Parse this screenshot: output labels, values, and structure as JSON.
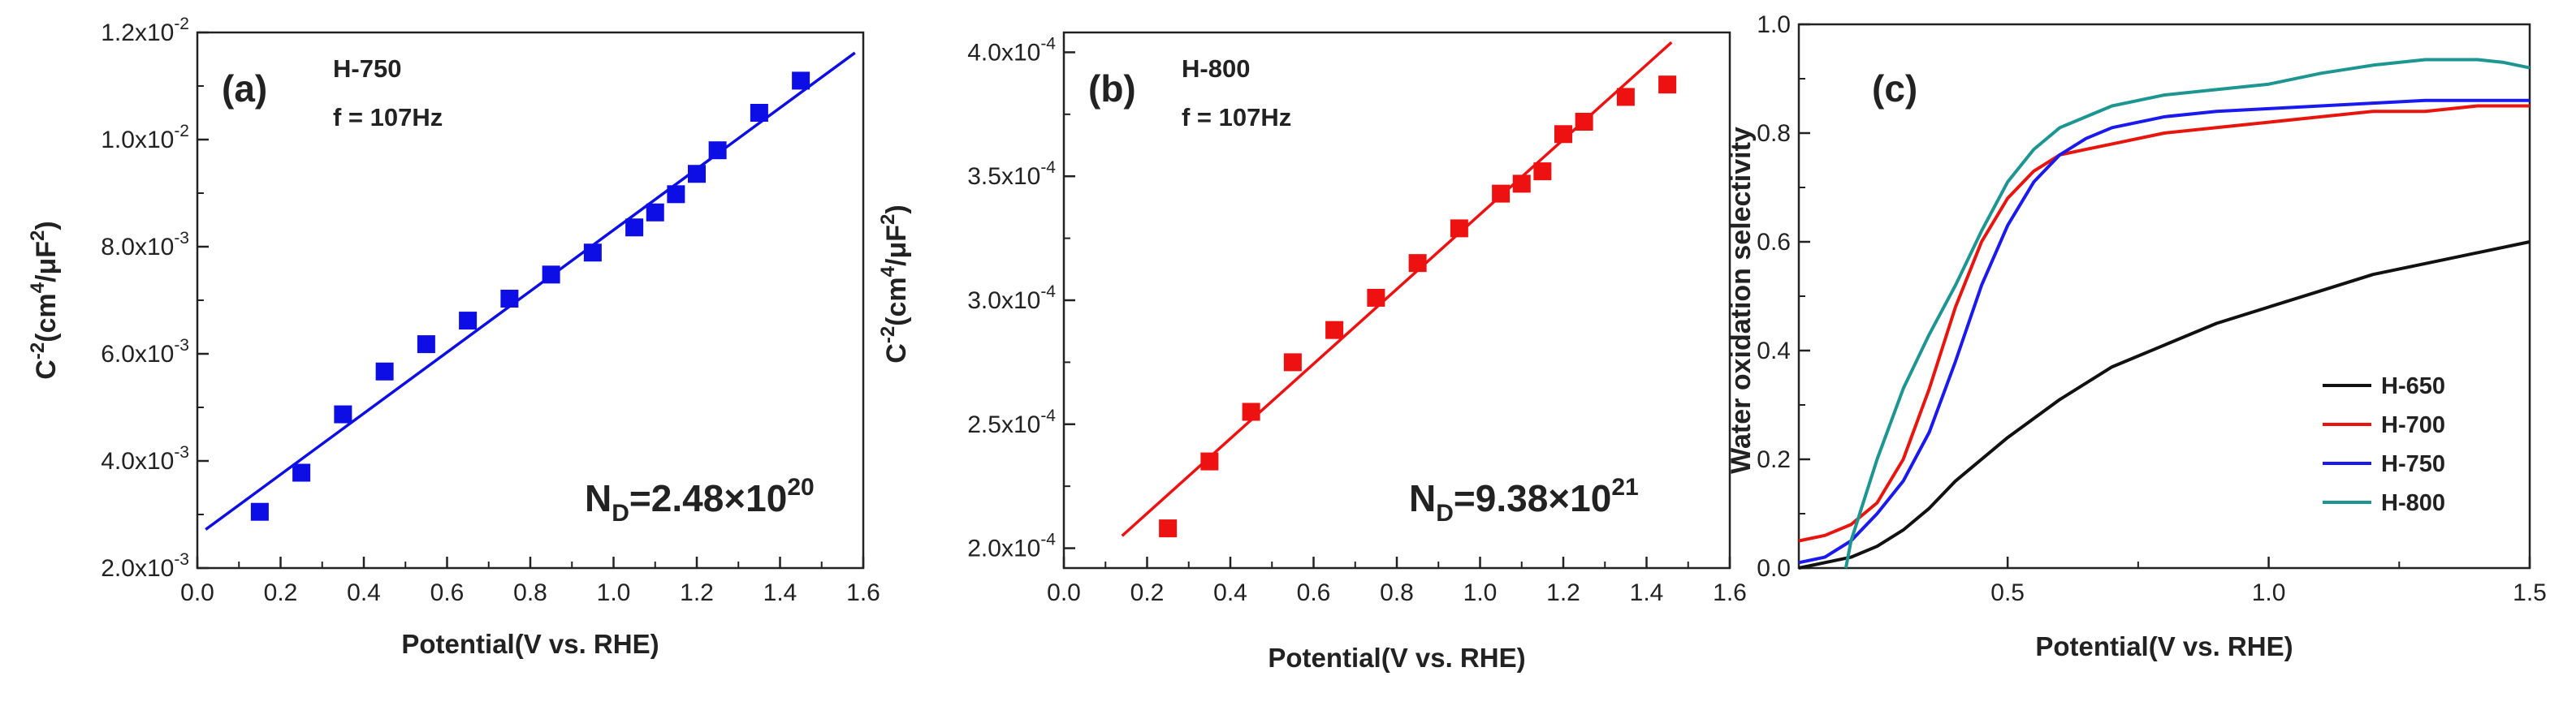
{
  "chart_data": [
    {
      "type": "scatter",
      "panel_label": "(a)",
      "sample_label": "H-750",
      "frequency_label": "f = 107Hz",
      "xlabel": "Potential(V vs. RHE)",
      "ylabel_base": "C",
      "ylabel_exp": "-2",
      "ylabel_unit_open": "(cm",
      "ylabel_unit_exp1": "4",
      "ylabel_unit_mid": "/μF",
      "ylabel_unit_exp2": "2",
      "ylabel_unit_close": ")",
      "xlim": [
        0.0,
        1.6
      ],
      "ylim": [
        0.002,
        0.012
      ],
      "xticks": [
        0.0,
        0.2,
        0.4,
        0.6,
        0.8,
        1.0,
        1.2,
        1.4,
        1.6
      ],
      "xtick_labels": [
        "0.0",
        "0.2",
        "0.4",
        "0.6",
        "0.8",
        "1.0",
        "1.2",
        "1.4",
        "1.6"
      ],
      "yticks": [
        0.002,
        0.004,
        0.006,
        0.008,
        0.01,
        0.012
      ],
      "ytick_mantissas": [
        "2.0x10",
        "4.0x10",
        "6.0x10",
        "8.0x10",
        "1.0x10",
        "1.2x10"
      ],
      "ytick_exps": [
        "-3",
        "-3",
        "-3",
        "-3",
        "-2",
        "-2"
      ],
      "color": "#0d0de6",
      "points": {
        "x": [
          0.15,
          0.25,
          0.35,
          0.45,
          0.55,
          0.65,
          0.75,
          0.85,
          0.95,
          1.05,
          1.1,
          1.15,
          1.2,
          1.25,
          1.35,
          1.45
        ],
        "y": [
          0.00305,
          0.00378,
          0.00487,
          0.00567,
          0.00618,
          0.00662,
          0.00703,
          0.00748,
          0.00789,
          0.00836,
          0.00864,
          0.00898,
          0.00936,
          0.0098,
          0.0105,
          0.0111
        ]
      },
      "fit_line": {
        "x": [
          0.02,
          1.58
        ],
        "y": [
          0.00272,
          0.01162
        ]
      },
      "nd_prefix": "N",
      "nd_sub": "D",
      "nd_value": "=2.48×10",
      "nd_exp": "20"
    },
    {
      "type": "scatter",
      "panel_label": "(b)",
      "sample_label": "H-800",
      "frequency_label": "f = 107Hz",
      "xlabel": "Potential(V vs. RHE)",
      "ylabel_base": "C",
      "ylabel_exp": "-2",
      "ylabel_unit_open": "(cm",
      "ylabel_unit_exp1": "4",
      "ylabel_unit_mid": "/μF",
      "ylabel_unit_exp2": "2",
      "ylabel_unit_close": ")",
      "xlim": [
        0.0,
        1.6
      ],
      "ylim": [
        0.000192,
        0.000408
      ],
      "xticks": [
        0.0,
        0.2,
        0.4,
        0.6,
        0.8,
        1.0,
        1.2,
        1.4,
        1.6
      ],
      "xtick_labels": [
        "0.0",
        "0.2",
        "0.4",
        "0.6",
        "0.8",
        "1.0",
        "1.2",
        "1.4",
        "1.6"
      ],
      "yticks": [
        0.0002,
        0.00025,
        0.0003,
        0.00035,
        0.0004
      ],
      "ytick_mantissas": [
        "2.0x10",
        "2.5x10",
        "3.0x10",
        "3.5x10",
        "4.0x10"
      ],
      "ytick_exps": [
        "-4",
        "-4",
        "-4",
        "-4",
        "-4"
      ],
      "color": "#ee1111",
      "points": {
        "x": [
          0.25,
          0.35,
          0.45,
          0.55,
          0.65,
          0.75,
          0.85,
          0.95,
          1.05,
          1.1,
          1.15,
          1.2,
          1.25,
          1.35,
          1.45
        ],
        "y": [
          0.000208,
          0.000235,
          0.000255,
          0.000275,
          0.000288,
          0.000301,
          0.000315,
          0.000329,
          0.000343,
          0.000347,
          0.000352,
          0.000367,
          0.000372,
          0.000382,
          0.000387
        ]
      },
      "fit_line": {
        "x": [
          0.14,
          1.46
        ],
        "y": [
          0.000205,
          0.000404
        ]
      },
      "nd_prefix": "N",
      "nd_sub": "D",
      "nd_value": "=9.38×10",
      "nd_exp": "21"
    },
    {
      "type": "line",
      "panel_label": "(c)",
      "xlabel": "Potential(V vs. RHE)",
      "ylabel": "Water oxidation selectivity",
      "xlim": [
        0.1,
        1.5
      ],
      "ylim": [
        0.0,
        1.0
      ],
      "xticks": [
        0.5,
        1.0,
        1.5
      ],
      "xtick_labels": [
        "0.5",
        "1.0",
        "1.5"
      ],
      "yticks": [
        0.0,
        0.2,
        0.4,
        0.6,
        0.8,
        1.0
      ],
      "ytick_labels": [
        "0.0",
        "0.2",
        "0.4",
        "0.6",
        "0.8",
        "1.0"
      ],
      "legend_position": "lower-right",
      "series": [
        {
          "name": "H-650",
          "color": "#111111",
          "x": [
            0.1,
            0.15,
            0.2,
            0.25,
            0.3,
            0.35,
            0.4,
            0.45,
            0.5,
            0.6,
            0.7,
            0.8,
            0.9,
            1.0,
            1.1,
            1.2,
            1.3,
            1.4,
            1.5
          ],
          "y": [
            0.0,
            0.01,
            0.02,
            0.04,
            0.07,
            0.11,
            0.16,
            0.2,
            0.24,
            0.31,
            0.37,
            0.41,
            0.45,
            0.48,
            0.51,
            0.54,
            0.56,
            0.58,
            0.6
          ]
        },
        {
          "name": "H-700",
          "color": "#e8150f",
          "x": [
            0.1,
            0.15,
            0.2,
            0.25,
            0.3,
            0.35,
            0.4,
            0.45,
            0.5,
            0.55,
            0.6,
            0.65,
            0.7,
            0.8,
            0.9,
            1.0,
            1.1,
            1.2,
            1.3,
            1.4,
            1.5
          ],
          "y": [
            0.05,
            0.06,
            0.08,
            0.12,
            0.2,
            0.33,
            0.48,
            0.6,
            0.68,
            0.73,
            0.76,
            0.77,
            0.78,
            0.8,
            0.81,
            0.82,
            0.83,
            0.84,
            0.84,
            0.85,
            0.85
          ]
        },
        {
          "name": "H-750",
          "color": "#1a1aef",
          "x": [
            0.1,
            0.15,
            0.2,
            0.25,
            0.3,
            0.35,
            0.4,
            0.45,
            0.5,
            0.55,
            0.6,
            0.65,
            0.7,
            0.8,
            0.9,
            1.0,
            1.1,
            1.2,
            1.3,
            1.4,
            1.5
          ],
          "y": [
            0.01,
            0.02,
            0.05,
            0.1,
            0.16,
            0.25,
            0.38,
            0.52,
            0.63,
            0.71,
            0.76,
            0.79,
            0.81,
            0.83,
            0.84,
            0.845,
            0.85,
            0.855,
            0.86,
            0.86,
            0.86
          ]
        },
        {
          "name": "H-800",
          "color": "#1d9590",
          "x": [
            0.19,
            0.2,
            0.25,
            0.3,
            0.35,
            0.4,
            0.45,
            0.5,
            0.55,
            0.6,
            0.65,
            0.7,
            0.8,
            0.9,
            1.0,
            1.1,
            1.2,
            1.3,
            1.4,
            1.45,
            1.5
          ],
          "y": [
            0.0,
            0.05,
            0.2,
            0.33,
            0.43,
            0.52,
            0.62,
            0.71,
            0.77,
            0.81,
            0.83,
            0.85,
            0.87,
            0.88,
            0.89,
            0.91,
            0.925,
            0.935,
            0.935,
            0.93,
            0.92
          ]
        }
      ]
    }
  ]
}
